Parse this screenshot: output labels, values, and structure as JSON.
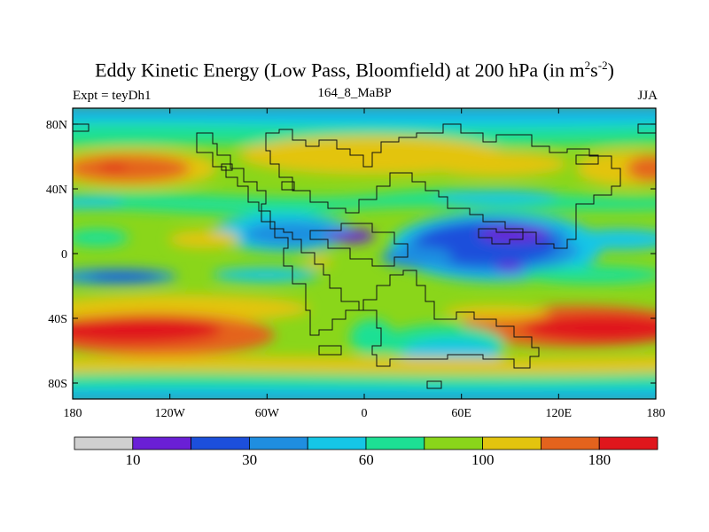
{
  "title": {
    "main": "Eddy Kinetic Energy (Low Pass, Bloomfield) at 200 hPa (in m",
    "sup1": "2",
    "mid": "s",
    "sup2": "-2",
    "end": ")"
  },
  "left_label": "Expt = teyDh1",
  "center_label": "164_8_MaBP",
  "right_label": "JJA",
  "axes": {
    "x_ticks": [
      "180",
      "120W",
      "60W",
      "0",
      "60E",
      "120E",
      "180"
    ],
    "y_ticks": [
      "80N",
      "40N",
      "0",
      "40S",
      "80S"
    ]
  },
  "colorbar": {
    "colors": [
      "#d0d0d0",
      "#6a1fd6",
      "#1c4fdb",
      "#1f8ee0",
      "#15c6e6",
      "#1de094",
      "#8ad61a",
      "#e3c40e",
      "#e4631d",
      "#e0161c"
    ],
    "labels": [
      "10",
      "30",
      "60",
      "100",
      "180"
    ]
  }
}
